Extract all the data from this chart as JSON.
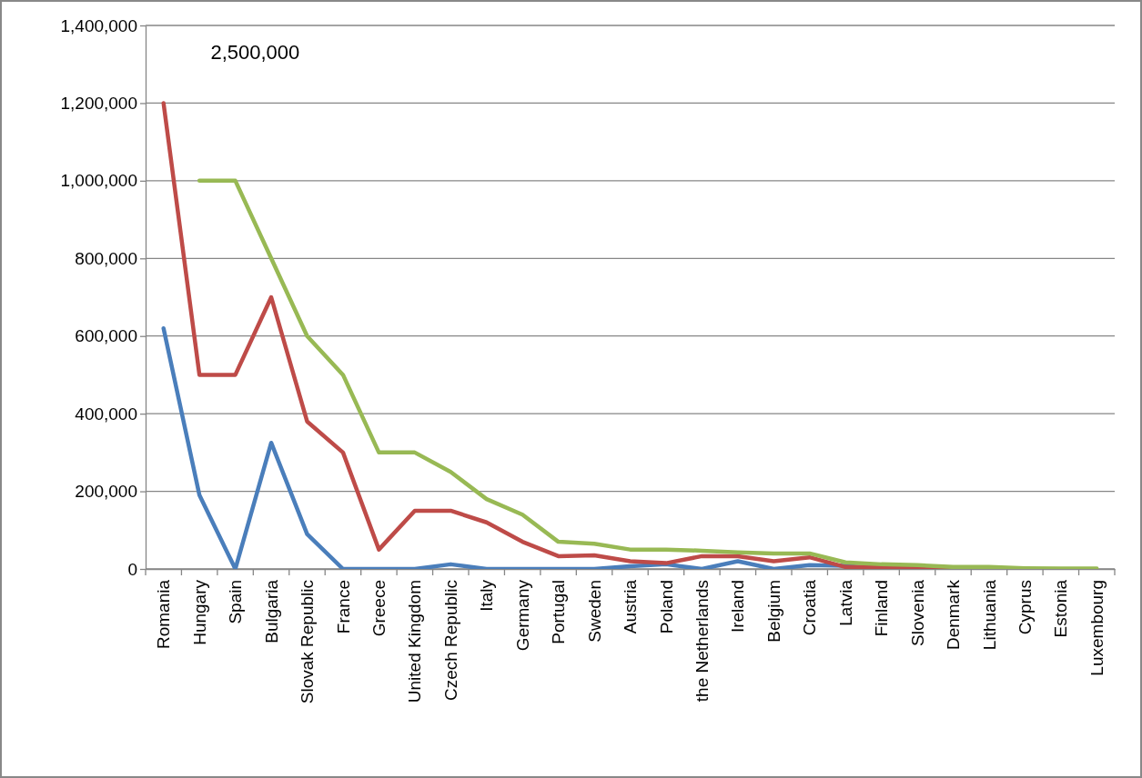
{
  "chart_data": {
    "type": "line",
    "categories": [
      "Romania",
      "Hungary",
      "Spain",
      "Bulgaria",
      "Slovak Republic",
      "France",
      "Greece",
      "United Kingdom",
      "Czech Republic",
      "Italy",
      "Germany",
      "Portugal",
      "Sweden",
      "Austria",
      "Poland",
      "the Netherlands",
      "Ireland",
      "Belgium",
      "Croatia",
      "Latvia",
      "Finland",
      "Slovenia",
      "Denmark",
      "Lithuania",
      "Cyprus",
      "Estonia",
      "Luxembourg"
    ],
    "series": [
      {
        "color": "#4a7ebb",
        "values": [
          620000,
          190000,
          0,
          325000,
          90000,
          0,
          0,
          0,
          12000,
          0,
          0,
          0,
          0,
          7000,
          12000,
          0,
          20000,
          0,
          10000,
          8000,
          0,
          null,
          null,
          null,
          null,
          null,
          null
        ]
      },
      {
        "color": "#be4b48",
        "values": [
          1200000,
          500000,
          500000,
          700000,
          380000,
          300000,
          50000,
          150000,
          150000,
          120000,
          70000,
          33000,
          35000,
          20000,
          15000,
          33000,
          33000,
          20000,
          30000,
          5000,
          5000,
          3000,
          2000,
          3000,
          null,
          null,
          null
        ]
      },
      {
        "color": "#98b954",
        "values": [
          null,
          1000000,
          1000000,
          800000,
          600000,
          500000,
          300000,
          300000,
          250000,
          180000,
          140000,
          70000,
          65000,
          50000,
          50000,
          47000,
          43000,
          40000,
          40000,
          17000,
          12000,
          10000,
          5000,
          5000,
          2000,
          1000,
          1000
        ]
      }
    ],
    "ylim": [
      0,
      1400000
    ],
    "yticks": [
      {
        "value": 0,
        "label": "0"
      },
      {
        "value": 200000,
        "label": "200,000"
      },
      {
        "value": 400000,
        "label": "400,000"
      },
      {
        "value": 600000,
        "label": "600,000"
      },
      {
        "value": 800000,
        "label": "800,000"
      },
      {
        "value": 1000000,
        "label": "1,000,000"
      },
      {
        "value": 1200000,
        "label": "1,200,000"
      },
      {
        "value": 1400000,
        "label": "1,400,000"
      }
    ],
    "grid": "y",
    "annotations": [
      "2,500,000"
    ]
  }
}
